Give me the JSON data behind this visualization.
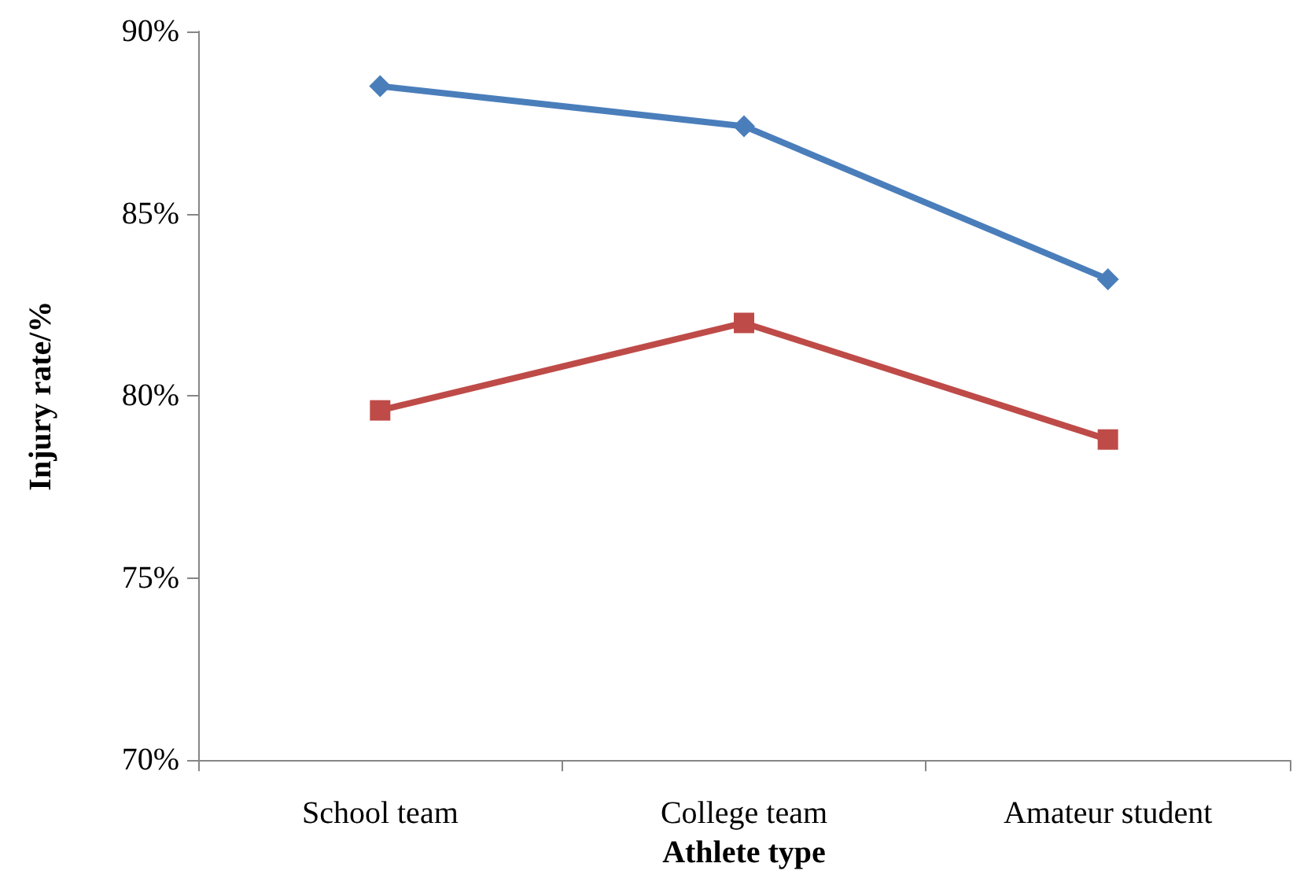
{
  "chart_data": {
    "type": "line",
    "xlabel": "Athlete type",
    "ylabel": "Injury rate/%",
    "categories": [
      "School team",
      "College team",
      "Amateur student"
    ],
    "series": [
      {
        "color": "#4a7ebb",
        "values": [
          88.5,
          87.4,
          83.2
        ],
        "marker": "diamond"
      },
      {
        "color": "#be4b48",
        "values": [
          79.6,
          82.0,
          78.8
        ],
        "marker": "square"
      }
    ],
    "ylim": [
      70,
      90
    ],
    "yticks": [
      {
        "value": 70,
        "label": "70%"
      },
      {
        "value": 75,
        "label": "75%"
      },
      {
        "value": 80,
        "label": "80%"
      },
      {
        "value": 85,
        "label": "85%"
      },
      {
        "value": 90,
        "label": "90%"
      }
    ],
    "grid": false
  }
}
